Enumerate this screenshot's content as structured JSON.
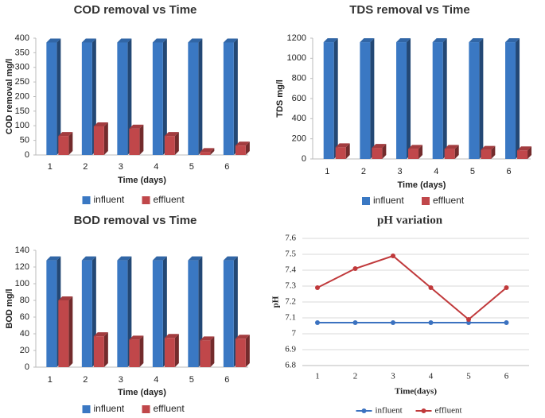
{
  "chart_data": [
    {
      "type": "bar",
      "title": "COD removal vs Time",
      "x_label": "Time (days)",
      "y_label": "COD removal mg/l",
      "categories": [
        "1",
        "2",
        "3",
        "4",
        "5",
        "6"
      ],
      "series": [
        {
          "name": "influent",
          "color": "#3a78c3",
          "values": [
            385,
            385,
            385,
            385,
            385,
            385
          ]
        },
        {
          "name": "effluent",
          "color": "#c0474a",
          "values": [
            65,
            98,
            90,
            65,
            10,
            32
          ]
        }
      ],
      "ylim": [
        0,
        400
      ],
      "yticks": [
        0,
        50,
        100,
        150,
        200,
        250,
        300,
        350,
        400
      ],
      "grid": false
    },
    {
      "type": "bar",
      "title": "TDS removal vs Time",
      "x_label": "Time (days)",
      "y_label": "TDS mg/l",
      "categories": [
        "1",
        "2",
        "3",
        "4",
        "5",
        "6"
      ],
      "series": [
        {
          "name": "influent",
          "color": "#3a78c3",
          "values": [
            1160,
            1160,
            1160,
            1160,
            1160,
            1160
          ]
        },
        {
          "name": "effluent",
          "color": "#c0474a",
          "values": [
            115,
            110,
            100,
            100,
            90,
            85
          ]
        }
      ],
      "ylim": [
        0,
        1200
      ],
      "yticks": [
        0,
        200,
        400,
        600,
        800,
        1000,
        1200
      ],
      "grid": false
    },
    {
      "type": "bar",
      "title": "BOD removal vs Time",
      "x_label": "Time (days)",
      "y_label": "BOD mg/l",
      "categories": [
        "1",
        "2",
        "3",
        "4",
        "5",
        "6"
      ],
      "series": [
        {
          "name": "influent",
          "color": "#3a78c3",
          "values": [
            128,
            128,
            128,
            128,
            128,
            128
          ]
        },
        {
          "name": "effluent",
          "color": "#c0474a",
          "values": [
            80,
            37,
            33,
            35,
            32,
            34
          ]
        }
      ],
      "ylim": [
        0,
        140
      ],
      "yticks": [
        0,
        20,
        40,
        60,
        80,
        100,
        120,
        140
      ],
      "grid": false
    },
    {
      "type": "line",
      "title": "pH variation",
      "x_label": "Time(days)",
      "y_label": "pH",
      "categories": [
        "1",
        "2",
        "3",
        "4",
        "5",
        "6"
      ],
      "series": [
        {
          "name": "influent",
          "color": "#3b72c0",
          "values": [
            7.07,
            7.07,
            7.07,
            7.07,
            7.07,
            7.07
          ]
        },
        {
          "name": "effluent",
          "color": "#c0393b",
          "values": [
            7.29,
            7.41,
            7.49,
            7.29,
            7.09,
            7.29
          ]
        }
      ],
      "ylim": [
        6.8,
        7.6
      ],
      "yticks": [
        6.8,
        6.9,
        7,
        7.1,
        7.2,
        7.3,
        7.4,
        7.5,
        7.6
      ],
      "grid": true
    }
  ]
}
